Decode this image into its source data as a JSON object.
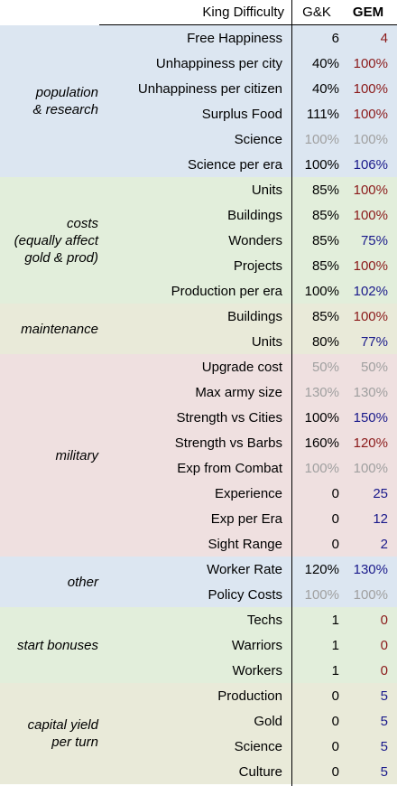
{
  "header": {
    "title": "King Difficulty",
    "col1": "G&K",
    "col2": "GEM"
  },
  "groups": [
    {
      "label": "population\n& research",
      "bg": "#dce6f1",
      "rows": [
        {
          "name": "Free Happiness",
          "v1": "6",
          "v2": "4",
          "style": "up"
        },
        {
          "name": "Unhappiness per city",
          "v1": "40%",
          "v2": "100%",
          "style": "up"
        },
        {
          "name": "Unhappiness per citizen",
          "v1": "40%",
          "v2": "100%",
          "style": "up"
        },
        {
          "name": "Surplus Food",
          "v1": "111%",
          "v2": "100%",
          "style": "up"
        },
        {
          "name": "Science",
          "v1": "100%",
          "v2": "100%",
          "style": "muted"
        },
        {
          "name": "Science per era",
          "v1": "100%",
          "v2": "106%",
          "style": "down"
        }
      ]
    },
    {
      "label": "costs\n(equally affect\ngold & prod)",
      "bg": "#e2eedb",
      "rows": [
        {
          "name": "Units",
          "v1": "85%",
          "v2": "100%",
          "style": "up"
        },
        {
          "name": "Buildings",
          "v1": "85%",
          "v2": "100%",
          "style": "up"
        },
        {
          "name": "Wonders",
          "v1": "85%",
          "v2": "75%",
          "style": "down"
        },
        {
          "name": "Projects",
          "v1": "85%",
          "v2": "100%",
          "style": "up"
        },
        {
          "name": "Production per era",
          "v1": "100%",
          "v2": "102%",
          "style": "down"
        }
      ]
    },
    {
      "label": "maintenance",
      "bg": "#e9ead9",
      "rows": [
        {
          "name": "Buildings",
          "v1": "85%",
          "v2": "100%",
          "style": "up"
        },
        {
          "name": "Units",
          "v1": "80%",
          "v2": "77%",
          "style": "down"
        }
      ]
    },
    {
      "label": "military",
      "bg": "#efe0e0",
      "rows": [
        {
          "name": "Upgrade cost",
          "v1": "50%",
          "v2": "50%",
          "style": "muted"
        },
        {
          "name": "Max army size",
          "v1": "130%",
          "v2": "130%",
          "style": "muted"
        },
        {
          "name": "Strength vs Cities",
          "v1": "100%",
          "v2": "150%",
          "style": "down"
        },
        {
          "name": "Strength vs Barbs",
          "v1": "160%",
          "v2": "120%",
          "style": "up"
        },
        {
          "name": "Exp from Combat",
          "v1": "100%",
          "v2": "100%",
          "style": "muted"
        },
        {
          "name": "Experience",
          "v1": "0",
          "v2": "25",
          "style": "down"
        },
        {
          "name": "Exp per Era",
          "v1": "0",
          "v2": "12",
          "style": "down"
        },
        {
          "name": "Sight Range",
          "v1": "0",
          "v2": "2",
          "style": "down"
        }
      ]
    },
    {
      "label": "other",
      "bg": "#dce6f1",
      "rows": [
        {
          "name": "Worker Rate",
          "v1": "120%",
          "v2": "130%",
          "style": "down"
        },
        {
          "name": "Policy Costs",
          "v1": "100%",
          "v2": "100%",
          "style": "muted"
        }
      ]
    },
    {
      "label": "start bonuses",
      "bg": "#e2eedb",
      "rows": [
        {
          "name": "Techs",
          "v1": "1",
          "v2": "0",
          "style": "up"
        },
        {
          "name": "Warriors",
          "v1": "1",
          "v2": "0",
          "style": "up"
        },
        {
          "name": "Workers",
          "v1": "1",
          "v2": "0",
          "style": "up"
        }
      ]
    },
    {
      "label": "capital yield\nper turn",
      "bg": "#e9ead9",
      "rows": [
        {
          "name": "Production",
          "v1": "0",
          "v2": "5",
          "style": "down"
        },
        {
          "name": "Gold",
          "v1": "0",
          "v2": "5",
          "style": "down"
        },
        {
          "name": "Science",
          "v1": "0",
          "v2": "5",
          "style": "down"
        },
        {
          "name": "Culture",
          "v1": "0",
          "v2": "5",
          "style": "down"
        }
      ]
    }
  ]
}
